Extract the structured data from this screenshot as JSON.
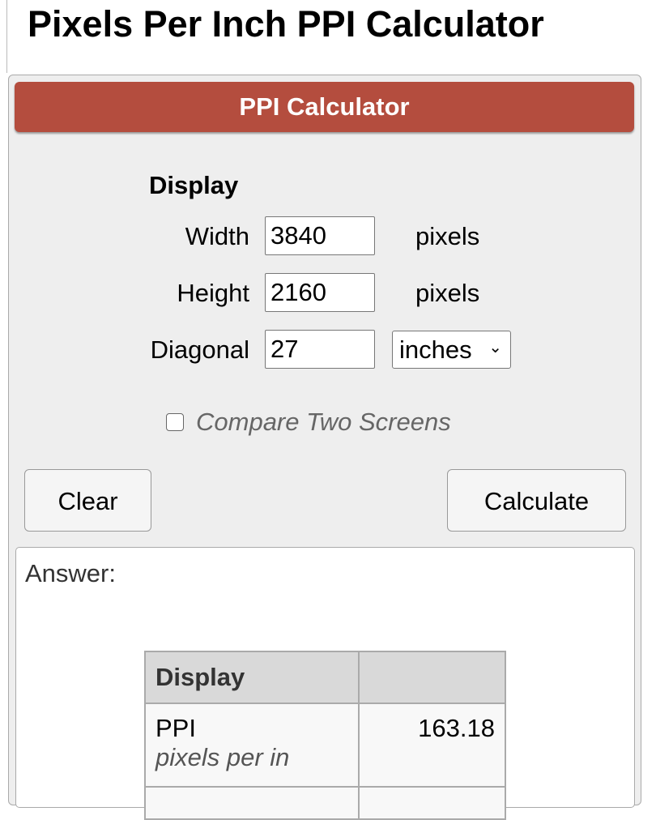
{
  "title": "Pixels Per Inch PPI Calculator",
  "calculator": {
    "header": "PPI Calculator",
    "section": "Display",
    "width_label": "Width",
    "width_value": "3840",
    "width_unit": "pixels",
    "height_label": "Height",
    "height_value": "2160",
    "height_unit": "pixels",
    "diagonal_label": "Diagonal",
    "diagonal_value": "27",
    "diagonal_unit": "inches",
    "compare_label": "Compare Two Screens",
    "compare_checked": false,
    "clear": "Clear",
    "calculate": "Calculate"
  },
  "answer": {
    "label": "Answer:",
    "table": {
      "header": [
        "Display",
        ""
      ],
      "rows": [
        {
          "name": "PPI",
          "sub": "pixels per in",
          "value": "163.18"
        }
      ]
    }
  },
  "colors": {
    "header": "#b44d3e"
  }
}
